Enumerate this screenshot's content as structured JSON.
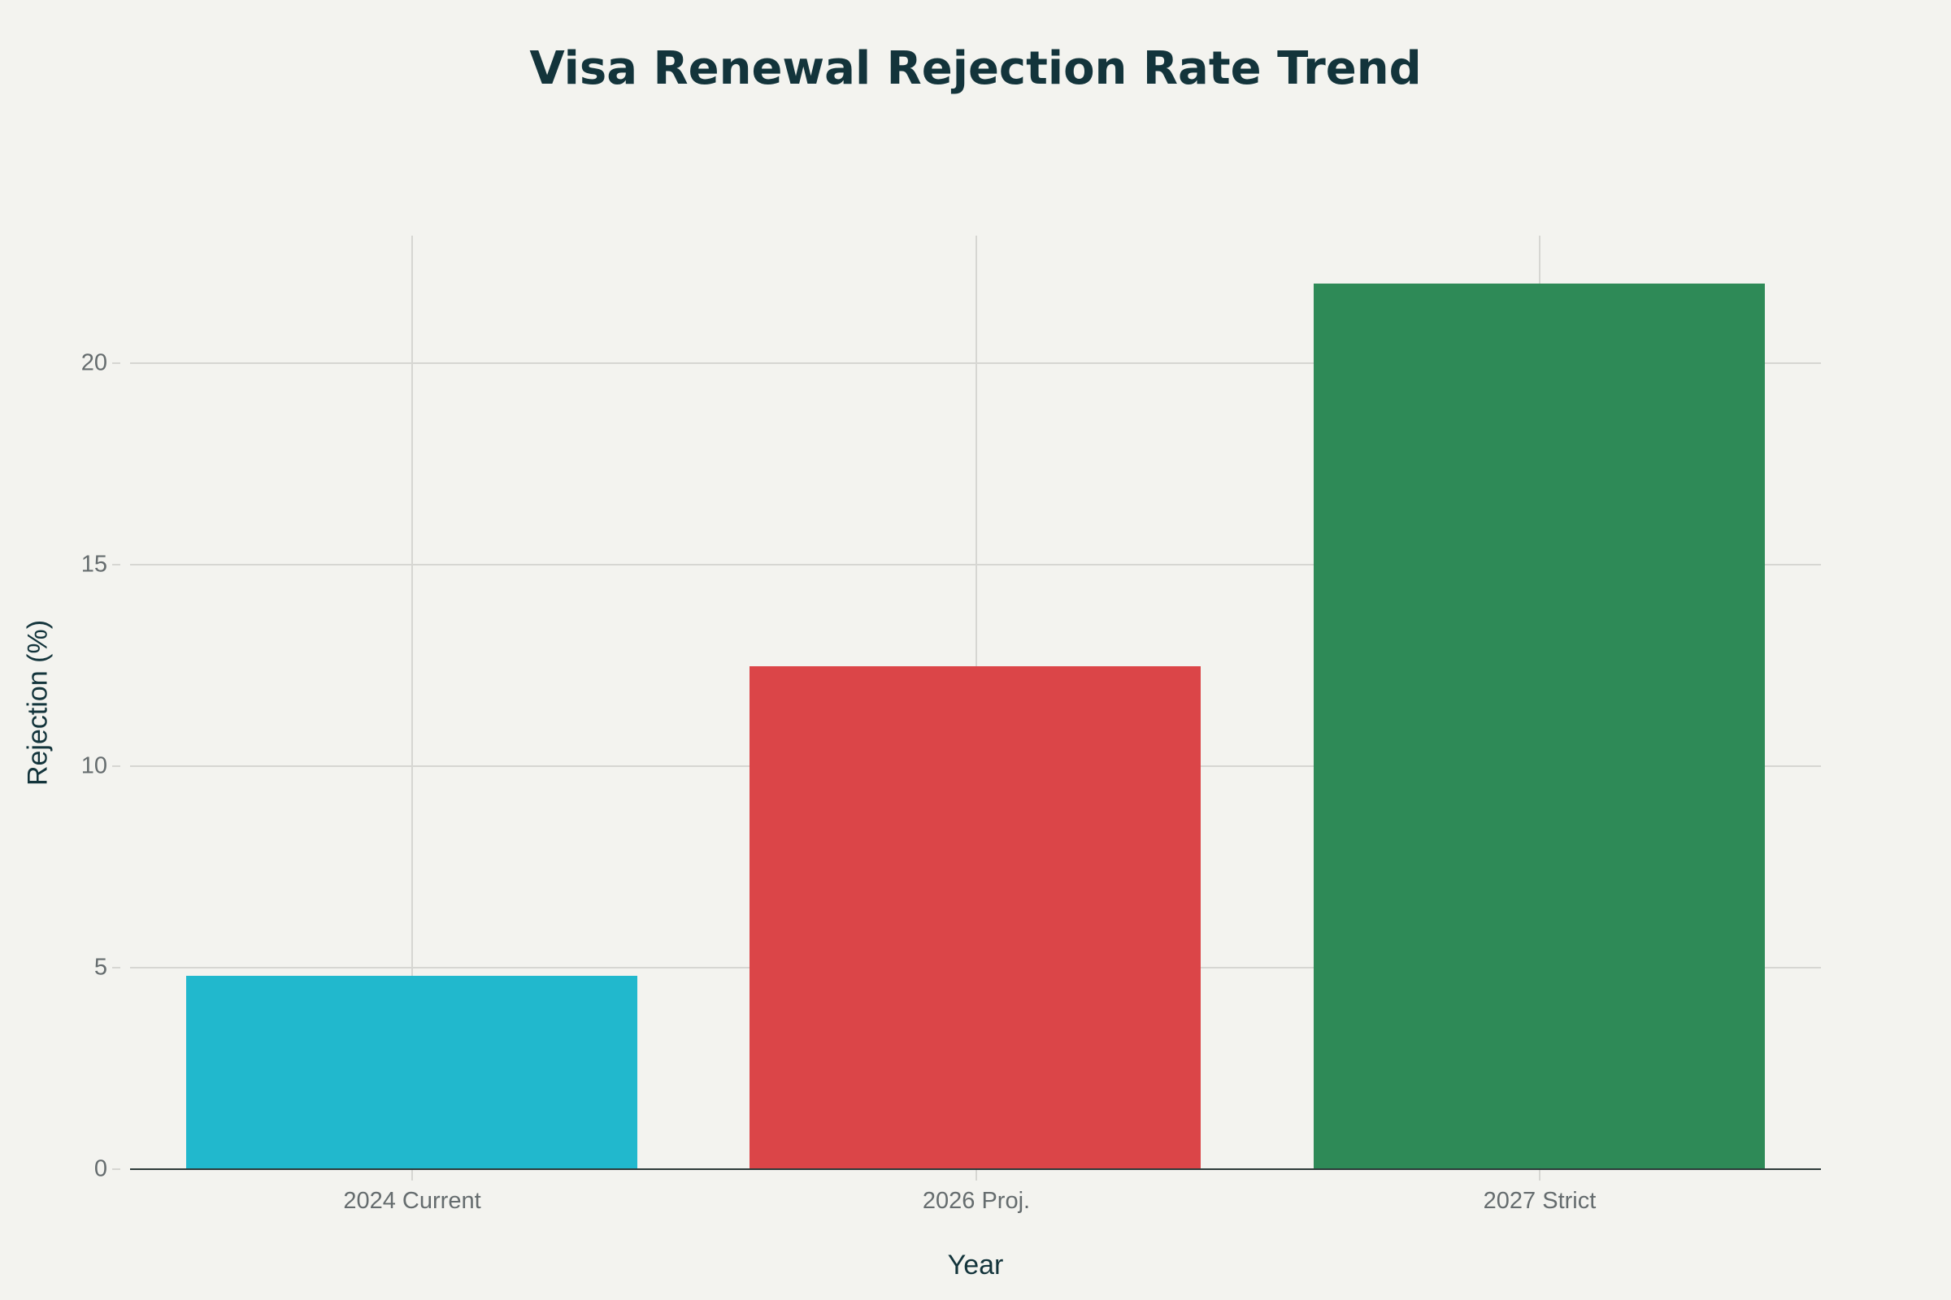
{
  "chart_data": {
    "type": "bar",
    "title": "Visa Renewal Rejection Rate Trend",
    "xlabel": "Year",
    "ylabel": "Rejection (%)",
    "categories": [
      "2024 Current",
      "2026 Proj.",
      "2027 Strict"
    ],
    "values": [
      4.8,
      12.5,
      22.0
    ],
    "colors": [
      "#21B8CD",
      "#DB4548",
      "#2E8A57"
    ],
    "ylim": [
      0,
      23.2
    ],
    "yticks": [
      0,
      5,
      10,
      15,
      20
    ],
    "grid": true,
    "legend": "none"
  },
  "header": {
    "title": "Visa Renewal Rejection Rate Trend"
  },
  "axes": {
    "x_title": "Year",
    "y_title": "Rejection (%)",
    "y_tick_labels": [
      "0",
      "5",
      "10",
      "15",
      "20"
    ],
    "x_tick_labels": [
      "2024 Current",
      "2026 Proj.",
      "2027 Strict"
    ]
  },
  "colors": {
    "background": "#F3F3EF",
    "title": "#13343B",
    "grid": "#D6D6D2",
    "tick_text": "#656C6E"
  }
}
